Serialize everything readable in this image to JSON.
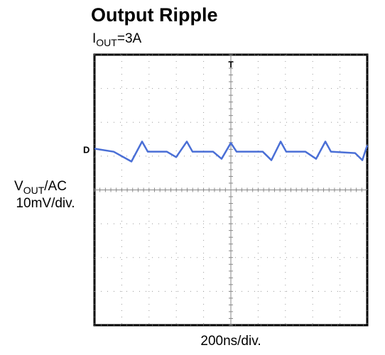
{
  "chart_data": {
    "type": "line",
    "title": "Output Ripple",
    "subtitle": {
      "main": "I",
      "sub": "OUT",
      "rest": "=3A"
    },
    "y_label": {
      "main": "V",
      "sub": "OUT",
      "rest": "/AC",
      "scale": "10mV/div."
    },
    "x_label": "200ns/div.",
    "channel_marker": "D",
    "trigger_marker": "T",
    "xlim": [
      0,
      2000
    ],
    "ylim": [
      -40,
      40
    ],
    "xticks": [
      0,
      200,
      400,
      600,
      800,
      1000,
      1200,
      1400,
      1600,
      1800,
      2000
    ],
    "yticks": [
      -40,
      -30,
      -20,
      -10,
      0,
      10,
      20,
      30,
      40
    ],
    "grid": true,
    "series": [
      {
        "color": "#4a6fd6",
        "x": [
          0,
          141,
          271,
          349,
          391,
          531,
          599,
          677,
          719,
          870,
          932,
          1000,
          1042,
          1234,
          1297,
          1365,
          1406,
          1547,
          1625,
          1693,
          1734,
          1911,
          1964,
          2000
        ],
        "values": [
          12.2,
          11.3,
          8.4,
          14.3,
          11.3,
          11.3,
          9.7,
          14.3,
          11.3,
          11.3,
          9.2,
          13.9,
          11.3,
          11.3,
          8.8,
          14.3,
          11.3,
          11.3,
          9.2,
          14.3,
          11.3,
          10.9,
          8.8,
          13.2
        ]
      }
    ]
  }
}
